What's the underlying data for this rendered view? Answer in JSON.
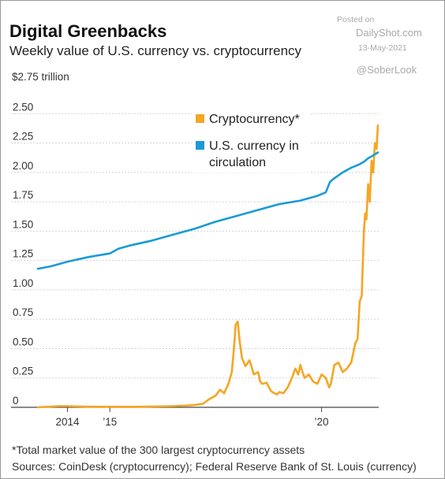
{
  "watermark": {
    "posted_label": "Posted on",
    "site": "DailyShot.com",
    "date": "13-May-2021",
    "handle": "@SoberLook"
  },
  "header": {
    "title": "Digital Greenbacks",
    "subtitle": "Weekly value of U.S. currency vs. cryptocurrency",
    "unit_label": "$2.75 trillion"
  },
  "footer": {
    "footnote": "*Total market value of the 300 largest cryptocurrency assets",
    "sources": "Sources: CoinDesk (cryptocurrency); Federal Reserve Bank of St. Louis (currency)"
  },
  "colors": {
    "crypto": "#f5a623",
    "currency": "#1b9ad6",
    "grid": "#d4d4d4",
    "axis": "#444444"
  },
  "chart_data": {
    "type": "line",
    "title": "Digital Greenbacks",
    "subtitle": "Weekly value of U.S. currency vs. cryptocurrency",
    "ylabel": "$ trillion",
    "ylim": [
      0,
      2.75
    ],
    "xlim": [
      2013.3,
      2021.35
    ],
    "grid": true,
    "legend_position": "top-center",
    "y_ticks": [
      {
        "value": 0,
        "label": "0"
      },
      {
        "value": 0.25,
        "label": "0.25"
      },
      {
        "value": 0.5,
        "label": "0.50"
      },
      {
        "value": 0.75,
        "label": "0.75"
      },
      {
        "value": 1.0,
        "label": "1.00"
      },
      {
        "value": 1.25,
        "label": "1.25"
      },
      {
        "value": 1.5,
        "label": "1.50"
      },
      {
        "value": 1.75,
        "label": "1.75"
      },
      {
        "value": 2.0,
        "label": "2.00"
      },
      {
        "value": 2.25,
        "label": "2.25"
      },
      {
        "value": 2.5,
        "label": "2.50"
      }
    ],
    "x_ticks": [
      {
        "value": 2014,
        "label": "2014"
      },
      {
        "value": 2015,
        "label": "’15"
      },
      {
        "value": 2020,
        "label": "’20"
      }
    ],
    "series": [
      {
        "name": "Cryptocurrency*",
        "color": "#f5a623",
        "x": [
          2013.3,
          2013.8,
          2014.0,
          2014.5,
          2015.0,
          2015.5,
          2016.0,
          2016.5,
          2016.8,
          2017.0,
          2017.2,
          2017.35,
          2017.5,
          2017.6,
          2017.7,
          2017.8,
          2017.88,
          2017.93,
          2017.97,
          2018.02,
          2018.07,
          2018.12,
          2018.2,
          2018.3,
          2018.4,
          2018.5,
          2018.55,
          2018.6,
          2018.7,
          2018.8,
          2018.88,
          2018.95,
          2019.0,
          2019.1,
          2019.2,
          2019.3,
          2019.38,
          2019.45,
          2019.5,
          2019.55,
          2019.6,
          2019.7,
          2019.8,
          2019.9,
          2020.0,
          2020.1,
          2020.18,
          2020.22,
          2020.3,
          2020.4,
          2020.5,
          2020.6,
          2020.7,
          2020.8,
          2020.85,
          2020.9,
          2020.95,
          2021.0,
          2021.03,
          2021.06,
          2021.1,
          2021.14,
          2021.18,
          2021.22,
          2021.26,
          2021.3,
          2021.33
        ],
        "values": [
          0.0,
          0.01,
          0.01,
          0.005,
          0.005,
          0.004,
          0.006,
          0.01,
          0.015,
          0.02,
          0.03,
          0.07,
          0.1,
          0.15,
          0.12,
          0.2,
          0.3,
          0.5,
          0.7,
          0.73,
          0.55,
          0.42,
          0.35,
          0.4,
          0.28,
          0.3,
          0.22,
          0.2,
          0.21,
          0.14,
          0.12,
          0.11,
          0.13,
          0.12,
          0.17,
          0.25,
          0.33,
          0.28,
          0.36,
          0.3,
          0.25,
          0.28,
          0.22,
          0.2,
          0.28,
          0.25,
          0.17,
          0.2,
          0.36,
          0.38,
          0.3,
          0.33,
          0.38,
          0.55,
          0.58,
          0.9,
          0.95,
          1.5,
          1.65,
          1.6,
          1.9,
          1.75,
          2.1,
          2.0,
          2.25,
          2.2,
          2.4
        ]
      },
      {
        "name": "U.S. currency in circulation",
        "color": "#1b9ad6",
        "x": [
          2013.3,
          2013.6,
          2014.0,
          2014.5,
          2015.0,
          2015.2,
          2015.5,
          2016.0,
          2016.5,
          2017.0,
          2017.5,
          2018.0,
          2018.5,
          2019.0,
          2019.5,
          2019.9,
          2020.1,
          2020.2,
          2020.3,
          2020.5,
          2020.7,
          2020.9,
          2021.0,
          2021.1,
          2021.2,
          2021.33
        ],
        "values": [
          1.18,
          1.2,
          1.24,
          1.28,
          1.31,
          1.35,
          1.38,
          1.42,
          1.47,
          1.52,
          1.58,
          1.63,
          1.68,
          1.73,
          1.76,
          1.8,
          1.83,
          1.92,
          1.95,
          2.0,
          2.04,
          2.07,
          2.09,
          2.12,
          2.14,
          2.17
        ]
      }
    ]
  }
}
